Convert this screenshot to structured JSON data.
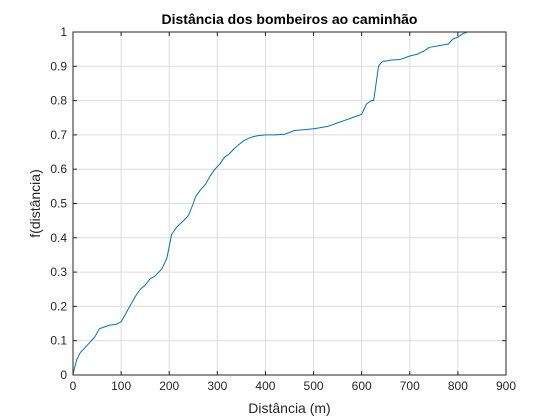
{
  "chart_data": {
    "type": "line",
    "title": "Distância dos bombeiros ao caminhão",
    "xlabel": "Distância (m)",
    "ylabel": "f(distância)",
    "xlim": [
      0,
      900
    ],
    "ylim": [
      0,
      1
    ],
    "xticks": [
      "0",
      "100",
      "200",
      "300",
      "400",
      "500",
      "600",
      "700",
      "800",
      "900"
    ],
    "yticks": [
      "0",
      "0.1",
      "0.2",
      "0.3",
      "0.4",
      "0.5",
      "0.6",
      "0.7",
      "0.8",
      "0.9",
      "1"
    ],
    "grid": true,
    "colors": {
      "line": "#0072BD",
      "grid": "#dcdcdc",
      "axis": "#262626"
    },
    "series": [
      {
        "x": [
          0,
          3,
          8,
          15,
          25,
          35,
          45,
          55,
          65,
          75,
          90,
          100,
          110,
          120,
          130,
          140,
          150,
          160,
          170,
          175,
          185,
          195,
          205,
          215,
          222,
          230,
          240,
          250,
          255,
          265,
          275,
          285,
          295,
          305,
          315,
          325,
          335,
          345,
          355,
          365,
          375,
          385,
          400,
          420,
          440,
          450,
          460,
          480,
          500,
          510,
          530,
          550,
          560,
          580,
          600,
          610,
          620,
          625,
          630,
          635,
          640,
          645,
          650,
          660,
          680,
          700,
          715,
          730,
          740,
          760,
          780,
          790,
          800,
          805,
          810,
          820,
          830,
          840
        ],
        "y": [
          0.0,
          0.02,
          0.045,
          0.065,
          0.08,
          0.095,
          0.11,
          0.135,
          0.14,
          0.145,
          0.148,
          0.155,
          0.18,
          0.205,
          0.23,
          0.25,
          0.262,
          0.28,
          0.288,
          0.295,
          0.31,
          0.34,
          0.41,
          0.43,
          0.44,
          0.45,
          0.465,
          0.5,
          0.52,
          0.54,
          0.555,
          0.58,
          0.6,
          0.615,
          0.635,
          0.645,
          0.66,
          0.672,
          0.683,
          0.69,
          0.695,
          0.698,
          0.7,
          0.7,
          0.702,
          0.707,
          0.713,
          0.715,
          0.718,
          0.72,
          0.725,
          0.735,
          0.74,
          0.75,
          0.76,
          0.79,
          0.8,
          0.8,
          0.85,
          0.9,
          0.91,
          0.915,
          0.915,
          0.918,
          0.92,
          0.93,
          0.935,
          0.945,
          0.955,
          0.96,
          0.965,
          0.98,
          0.985,
          0.99,
          0.995,
          1.0,
          1.0,
          1.0
        ]
      }
    ]
  }
}
